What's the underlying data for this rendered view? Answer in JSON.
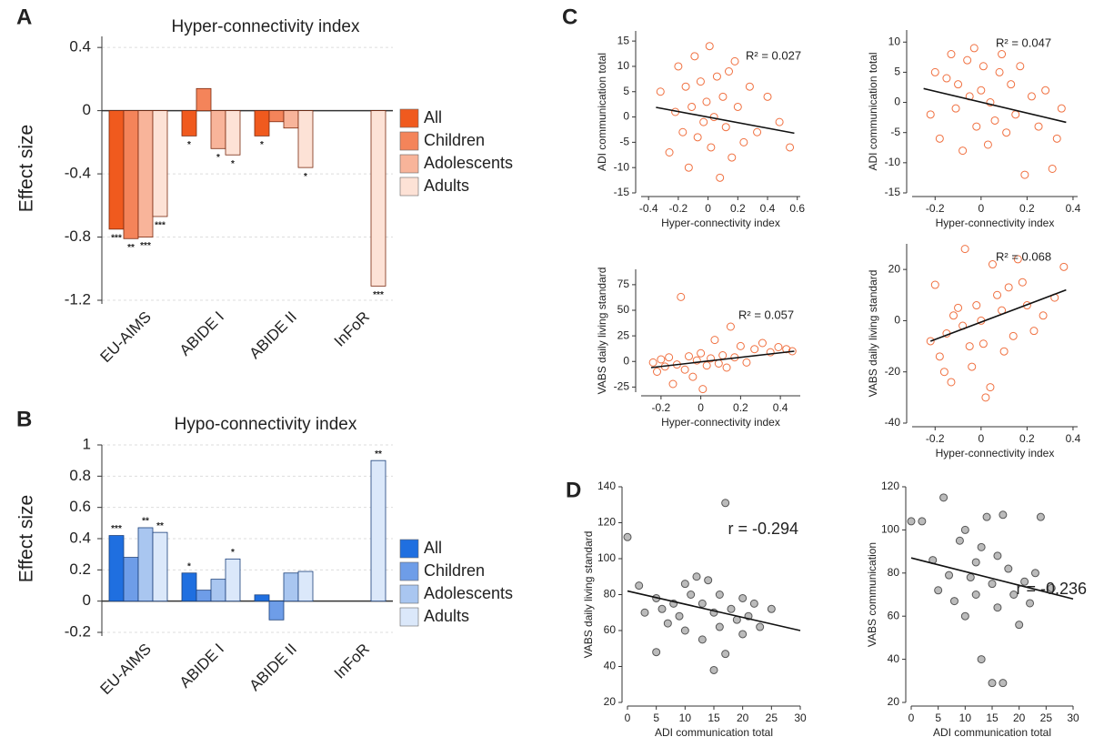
{
  "panel_labels": [
    "A",
    "B",
    "C",
    "D"
  ],
  "chart_data": [
    {
      "type": "bar",
      "title": "Hyper-connectivity index",
      "ylabel": "Effect size",
      "categories": [
        "EU-AIMS",
        "ABIDE I",
        "ABIDE II",
        "InFoR"
      ],
      "series": [
        {
          "name": "All",
          "color": "#f05a1e",
          "values": [
            -0.75,
            -0.16,
            -0.16,
            null
          ],
          "significance": [
            "***",
            "*",
            "*",
            null
          ]
        },
        {
          "name": "Children",
          "color": "#f4845a",
          "values": [
            -0.81,
            0.14,
            -0.07,
            null
          ],
          "significance": [
            "**",
            null,
            null,
            null
          ]
        },
        {
          "name": "Adolescents",
          "color": "#f8b49a",
          "values": [
            -0.8,
            -0.24,
            -0.11,
            null
          ],
          "significance": [
            "***",
            "*",
            null,
            null
          ]
        },
        {
          "name": "Adults",
          "color": "#fde2d6",
          "values": [
            -0.67,
            -0.28,
            -0.36,
            -1.11
          ],
          "significance": [
            "***",
            "*",
            "*",
            "***"
          ]
        }
      ],
      "ylim": [
        -1.2,
        0.47
      ],
      "yticks": [
        -1.2,
        -0.8,
        -0.4,
        0,
        0.4
      ],
      "grid": true
    },
    {
      "type": "bar",
      "title": "Hypo-connectivity index",
      "ylabel": "Effect size",
      "categories": [
        "EU-AIMS",
        "ABIDE I",
        "ABIDE II",
        "InFoR"
      ],
      "series": [
        {
          "name": "All",
          "color": "#1f6fe0",
          "values": [
            0.42,
            0.18,
            0.04,
            null
          ],
          "significance": [
            "***",
            "*",
            null,
            null
          ]
        },
        {
          "name": "Children",
          "color": "#6e9de8",
          "values": [
            0.28,
            0.07,
            -0.12,
            null
          ],
          "significance": [
            null,
            null,
            null,
            null
          ]
        },
        {
          "name": "Adolescents",
          "color": "#a9c6f0",
          "values": [
            0.47,
            0.14,
            0.18,
            null
          ],
          "significance": [
            "**",
            null,
            null,
            null
          ]
        },
        {
          "name": "Adults",
          "color": "#dbe8fa",
          "values": [
            0.44,
            0.27,
            0.19,
            0.9
          ],
          "significance": [
            "**",
            "*",
            null,
            "**"
          ]
        }
      ],
      "ylim": [
        -0.2,
        1
      ],
      "yticks": [
        -0.2,
        0,
        0.2,
        0.4,
        0.6,
        0.8,
        1
      ],
      "grid": true
    },
    {
      "type": "scatter",
      "xlabel": "Hyper-connectivity index",
      "ylabel": "ADI communication total",
      "color": "#f07040",
      "filled": false,
      "x": [
        -0.32,
        -0.26,
        -0.22,
        -0.2,
        -0.17,
        -0.15,
        -0.13,
        -0.11,
        -0.09,
        -0.07,
        -0.05,
        -0.03,
        -0.01,
        0.01,
        0.02,
        0.04,
        0.06,
        0.08,
        0.1,
        0.12,
        0.14,
        0.16,
        0.18,
        0.2,
        0.24,
        0.28,
        0.33,
        0.4,
        0.48,
        0.55
      ],
      "y": [
        5,
        -7,
        1,
        10,
        -3,
        6,
        -10,
        2,
        12,
        -4,
        7,
        -1,
        3,
        14,
        -6,
        0,
        8,
        -12,
        4,
        -2,
        9,
        -8,
        11,
        2,
        -5,
        6,
        -3,
        4,
        -1,
        -6
      ],
      "fit": {
        "x": [
          -0.35,
          0.58
        ],
        "y": [
          1.9,
          -3.2
        ]
      },
      "annotation": "R² = 0.027",
      "xlim": [
        -0.45,
        0.62
      ],
      "ylim": [
        -15,
        17
      ],
      "xticks": [
        -0.4,
        -0.2,
        0,
        0.2,
        0.4,
        0.6
      ],
      "yticks": [
        -15,
        -10,
        -5,
        0,
        5,
        10,
        15
      ]
    },
    {
      "type": "scatter",
      "xlabel": "Hyper-connectivity index",
      "ylabel": "ADI communication total",
      "color": "#f07040",
      "filled": false,
      "x": [
        -0.22,
        -0.2,
        -0.18,
        -0.15,
        -0.13,
        -0.11,
        -0.1,
        -0.08,
        -0.06,
        -0.05,
        -0.03,
        -0.02,
        0,
        0.01,
        0.03,
        0.04,
        0.06,
        0.08,
        0.09,
        0.11,
        0.13,
        0.15,
        0.17,
        0.19,
        0.22,
        0.25,
        0.28,
        0.31,
        0.33,
        0.35
      ],
      "y": [
        -2,
        5,
        -6,
        4,
        8,
        -1,
        3,
        -8,
        7,
        1,
        9,
        -4,
        2,
        6,
        -7,
        0,
        -3,
        5,
        8,
        -5,
        3,
        -2,
        6,
        -12,
        1,
        -4,
        2,
        -11,
        -6,
        -1
      ],
      "fit": {
        "x": [
          -0.25,
          0.37
        ],
        "y": [
          2.3,
          -3.3
        ]
      },
      "annotation": "R² = 0.047",
      "xlim": [
        -0.3,
        0.42
      ],
      "ylim": [
        -15,
        12
      ],
      "xticks": [
        -0.2,
        0,
        0.2,
        0.4
      ],
      "yticks": [
        -15,
        -10,
        -5,
        0,
        5,
        10
      ]
    },
    {
      "type": "scatter",
      "xlabel": "Hyper-connectivity index",
      "ylabel": "VABS daily living standard",
      "color": "#f07040",
      "filled": false,
      "x": [
        -0.24,
        -0.22,
        -0.2,
        -0.18,
        -0.16,
        -0.14,
        -0.12,
        -0.1,
        -0.08,
        -0.06,
        -0.04,
        -0.02,
        0,
        0.01,
        0.03,
        0.05,
        0.07,
        0.09,
        0.11,
        0.13,
        0.15,
        0.17,
        0.2,
        0.23,
        0.27,
        0.31,
        0.35,
        0.39,
        0.43,
        0.46
      ],
      "y": [
        -1,
        -10,
        2,
        -5,
        4,
        -22,
        -3,
        63,
        -8,
        5,
        -15,
        1,
        8,
        -27,
        -4,
        3,
        21,
        -2,
        6,
        -6,
        34,
        4,
        15,
        -1,
        12,
        18,
        9,
        14,
        12,
        10
      ],
      "fit": {
        "x": [
          -0.25,
          0.47
        ],
        "y": [
          -6,
          10
        ]
      },
      "annotation": "R² = 0.057",
      "xlim": [
        -0.3,
        0.5
      ],
      "ylim": [
        -30,
        90
      ],
      "xticks": [
        -0.2,
        0,
        0.2,
        0.4
      ],
      "yticks": [
        -25,
        0,
        25,
        50,
        75
      ]
    },
    {
      "type": "scatter",
      "xlabel": "Hyper-connectivity index",
      "ylabel": "VABS daily living standard",
      "color": "#f07040",
      "filled": false,
      "x": [
        -0.22,
        -0.2,
        -0.18,
        -0.16,
        -0.15,
        -0.13,
        -0.12,
        -0.1,
        -0.08,
        -0.07,
        -0.05,
        -0.04,
        -0.02,
        0,
        0.01,
        0.02,
        0.04,
        0.05,
        0.07,
        0.09,
        0.1,
        0.12,
        0.14,
        0.16,
        0.18,
        0.2,
        0.23,
        0.27,
        0.32,
        0.36
      ],
      "y": [
        -8,
        14,
        -14,
        -20,
        -5,
        -24,
        2,
        5,
        -2,
        28,
        -10,
        -18,
        6,
        0,
        -9,
        -30,
        -26,
        22,
        10,
        4,
        -12,
        13,
        -6,
        24,
        15,
        6,
        -4,
        2,
        9,
        21
      ],
      "fit": {
        "x": [
          -0.22,
          0.37
        ],
        "y": [
          -8,
          12
        ]
      },
      "annotation": "R² = 0.068",
      "xlim": [
        -0.3,
        0.42
      ],
      "ylim": [
        -40,
        30
      ],
      "xticks": [
        -0.2,
        0,
        0.2,
        0.4
      ],
      "yticks": [
        -40,
        -20,
        0,
        20
      ]
    },
    {
      "type": "scatter",
      "xlabel": "ADI communication total",
      "ylabel": "VABS daily living standard",
      "color": "#555555",
      "filled": true,
      "x": [
        0,
        2,
        3,
        5,
        5,
        6,
        7,
        8,
        9,
        10,
        10,
        11,
        12,
        13,
        13,
        14,
        15,
        15,
        16,
        16,
        17,
        17,
        18,
        19,
        20,
        20,
        21,
        22,
        23,
        25
      ],
      "y": [
        112,
        85,
        70,
        48,
        78,
        72,
        64,
        75,
        68,
        86,
        60,
        80,
        90,
        55,
        75,
        88,
        38,
        70,
        62,
        80,
        131,
        47,
        72,
        66,
        78,
        58,
        68,
        75,
        62,
        72
      ],
      "fit": {
        "x": [
          0,
          30
        ],
        "y": [
          82,
          60
        ]
      },
      "annotation": "r = -0.294",
      "xlim": [
        0,
        30
      ],
      "ylim": [
        20,
        140
      ],
      "xticks": [
        0,
        5,
        10,
        15,
        20,
        25,
        30
      ],
      "yticks": [
        20,
        40,
        60,
        80,
        100,
        120,
        140
      ]
    },
    {
      "type": "scatter",
      "xlabel": "ADI communication total",
      "ylabel": "VABS communication",
      "color": "#555555",
      "filled": true,
      "x": [
        0,
        2,
        4,
        5,
        6,
        7,
        8,
        9,
        10,
        10,
        11,
        12,
        12,
        13,
        13,
        14,
        15,
        15,
        16,
        16,
        17,
        17,
        18,
        19,
        20,
        21,
        22,
        23,
        24,
        26
      ],
      "y": [
        104,
        104,
        86,
        72,
        115,
        79,
        67,
        95,
        100,
        60,
        78,
        85,
        70,
        40,
        92,
        106,
        29,
        75,
        88,
        64,
        107,
        29,
        82,
        70,
        56,
        76,
        66,
        80,
        106,
        73
      ],
      "fit": {
        "x": [
          0,
          30
        ],
        "y": [
          87,
          68
        ]
      },
      "annotation": "r = -0.236",
      "xlim": [
        0,
        30
      ],
      "ylim": [
        20,
        120
      ],
      "xticks": [
        0,
        5,
        10,
        15,
        20,
        25,
        30
      ],
      "yticks": [
        20,
        40,
        60,
        80,
        100,
        120
      ]
    }
  ]
}
